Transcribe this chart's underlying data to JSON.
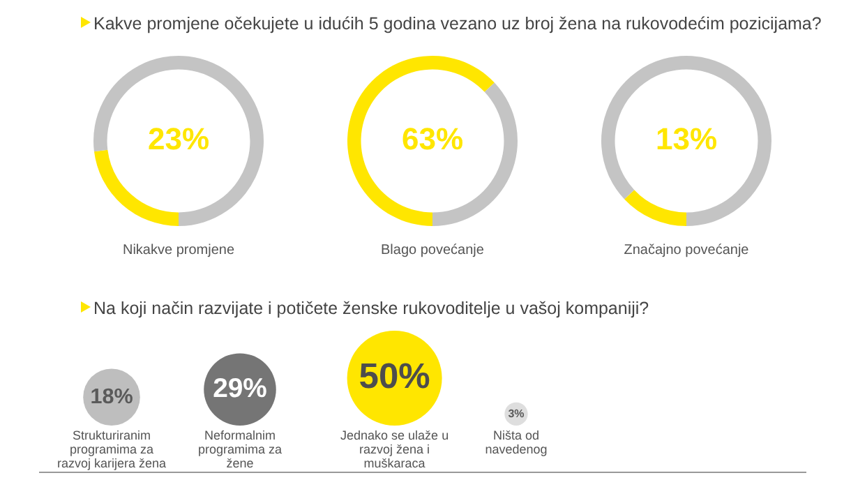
{
  "chart_data": [
    {
      "type": "donut",
      "title": "Kakve promjene očekujete u idućih 5 godina vezano uz broj žena na rukovodećim pozicijama?",
      "categories": [
        "Nikakve promjene",
        null
      ],
      "values": [
        23,
        77
      ],
      "colors": [
        "#ffe600",
        "#c4c4c4"
      ],
      "annotations": [
        "23%"
      ]
    },
    {
      "type": "donut",
      "categories": [
        "Blago povećanje",
        null
      ],
      "values": [
        63,
        37
      ],
      "colors": [
        "#ffe600",
        "#c4c4c4"
      ],
      "annotations": [
        "63%"
      ]
    },
    {
      "type": "donut",
      "categories": [
        "Značajno povećanje",
        null
      ],
      "values": [
        13,
        87
      ],
      "colors": [
        "#ffe600",
        "#c4c4c4"
      ],
      "annotations": [
        "13%"
      ]
    },
    {
      "type": "other",
      "title": "Na koji način razvijate i potičete ženske rukovoditelje u vašoj kompaniji?",
      "categories": [
        "Strukturiranim programima za razvoj karijera žena",
        "Neformalnim programima za žene",
        "Jednako se ulaže u razvoj žena i muškaraca",
        "Ništa od navedenog"
      ],
      "values": [
        18,
        29,
        50,
        3
      ],
      "colors": [
        "#bebebe",
        "#757575",
        "#ffe600",
        "#dedede"
      ],
      "value_labels": [
        "18%",
        "29%",
        "50%",
        "3%"
      ]
    }
  ]
}
